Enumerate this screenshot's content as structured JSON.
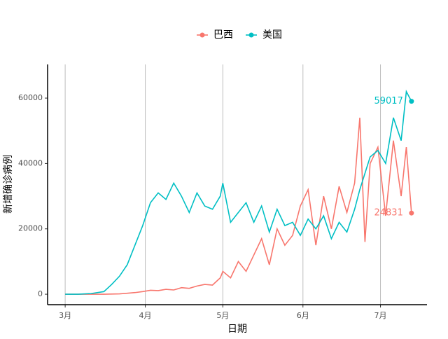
{
  "chart_data": {
    "type": "line",
    "x_label": "日期",
    "y_label": "新增确诊病例",
    "x": [
      0,
      5,
      10,
      15,
      18,
      21,
      24,
      27,
      30,
      33,
      36,
      39,
      42,
      45,
      48,
      51,
      54,
      57,
      60,
      61,
      64,
      67,
      70,
      73,
      76,
      79,
      82,
      85,
      88,
      91,
      94,
      97,
      100,
      103,
      106,
      109,
      112,
      114,
      116,
      118,
      121,
      124,
      127,
      130,
      132,
      134
    ],
    "series": [
      {
        "name": "巴西",
        "color": "#F8766D",
        "values": [
          0,
          0,
          0,
          0,
          50,
          100,
          300,
          500,
          800,
          1200,
          1100,
          1500,
          1300,
          2000,
          1800,
          2500,
          3000,
          2800,
          5000,
          7000,
          5000,
          10000,
          7000,
          12000,
          17000,
          9000,
          20000,
          15000,
          18000,
          27000,
          32000,
          15000,
          30000,
          20000,
          33000,
          25000,
          34000,
          54000,
          16000,
          40000,
          45000,
          24000,
          47000,
          30000,
          45000,
          24831
        ]
      },
      {
        "name": "美国",
        "color": "#00BFC4",
        "values": [
          0,
          0,
          200,
          800,
          3000,
          5500,
          9000,
          15000,
          21000,
          28000,
          31000,
          29000,
          34000,
          30000,
          25000,
          31000,
          27000,
          26000,
          30000,
          34000,
          22000,
          25000,
          28000,
          22000,
          27000,
          19000,
          26000,
          21000,
          22000,
          18000,
          23000,
          20000,
          24000,
          17000,
          22000,
          19000,
          26000,
          32000,
          37000,
          42000,
          44000,
          40000,
          54000,
          47000,
          62000,
          59017
        ]
      }
    ],
    "xlim": [
      -6.8,
      140
    ],
    "xticks": [
      {
        "value": 0,
        "label": "3月"
      },
      {
        "value": 31,
        "label": "4月"
      },
      {
        "value": 61,
        "label": "5月"
      },
      {
        "value": 92,
        "label": "6月"
      },
      {
        "value": 122,
        "label": "7月"
      }
    ],
    "ylim": [
      -3200,
      70300
    ],
    "yticks": [
      0,
      20000,
      40000,
      60000
    ],
    "grid": "x",
    "legend": "top"
  }
}
